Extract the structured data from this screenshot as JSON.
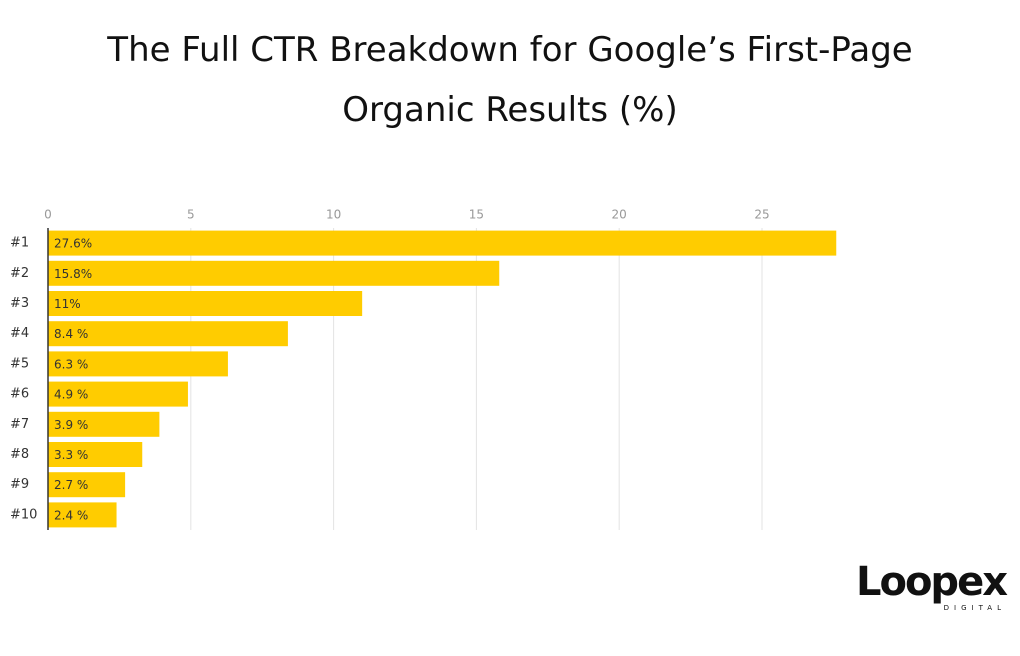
{
  "chart_data": {
    "type": "bar",
    "orientation": "horizontal",
    "title": "The Full CTR Breakdown for Google’s First-Page Organic Results (%)",
    "categories": [
      "#1",
      "#2",
      "#3",
      "#4",
      "#5",
      "#6",
      "#7",
      "#8",
      "#9",
      "#10"
    ],
    "values": [
      27.6,
      15.8,
      11,
      8.4,
      6.3,
      4.9,
      3.9,
      3.3,
      2.7,
      2.4
    ],
    "value_labels": [
      "27.6%",
      "15.8%",
      "11%",
      "8.4 %",
      "6.3 %",
      "4.9 %",
      "3.9 %",
      "3.3 %",
      "2.7 %",
      "2.4 %"
    ],
    "color": "#ffcc00",
    "xlim": [
      0,
      28
    ],
    "xticks": [
      0,
      5,
      10,
      15,
      20,
      25
    ],
    "grid": true
  },
  "logo": {
    "name": "Loopex",
    "tagline": "DIGITAL"
  }
}
